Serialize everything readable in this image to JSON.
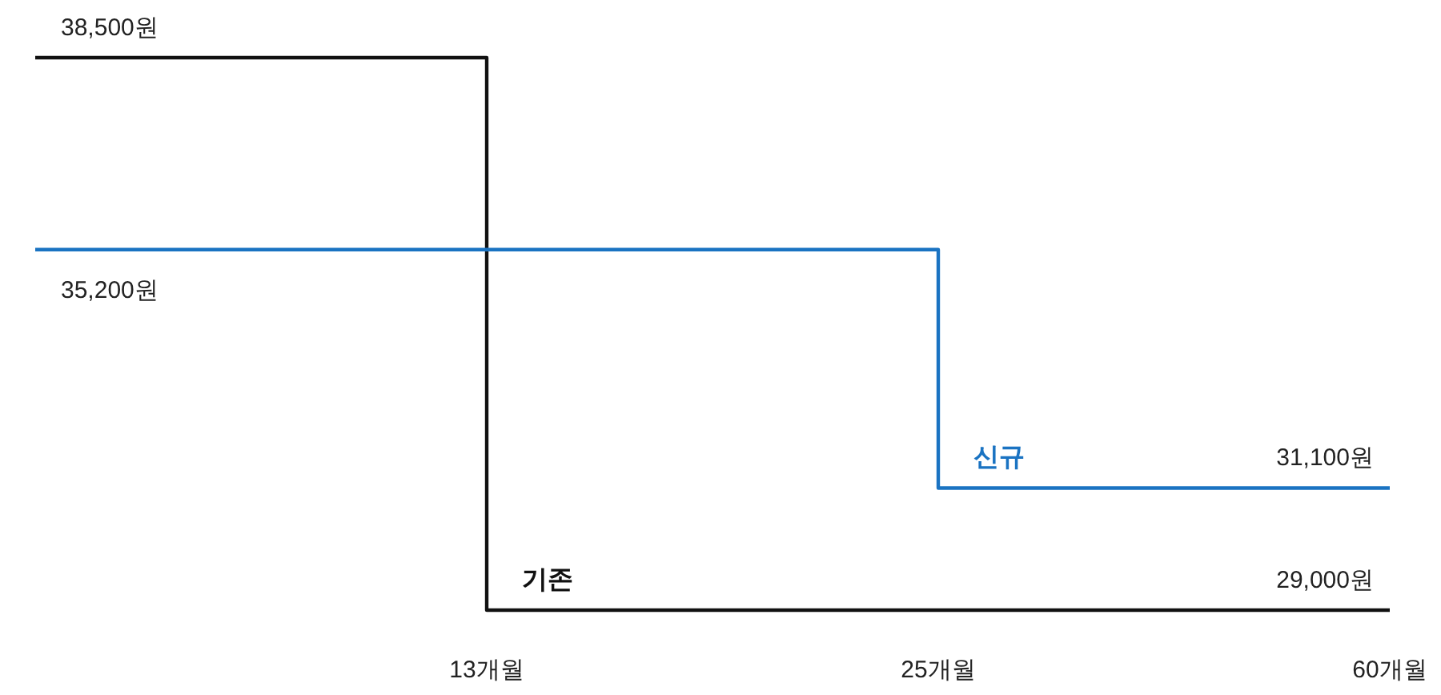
{
  "chart_data": {
    "type": "step",
    "categories": [
      null,
      "13개월",
      "25개월",
      "60개월"
    ],
    "series": [
      {
        "name": "기존",
        "color": "#111111",
        "values": [
          38500,
          29000,
          29000,
          29000
        ],
        "value_labels": [
          "38,500원",
          null,
          null,
          "29,000원"
        ]
      },
      {
        "name": "신규",
        "color": "#1a73c2",
        "values": [
          35200,
          35200,
          31100,
          31100
        ],
        "value_labels": [
          "35,200원",
          null,
          null,
          "31,100원"
        ]
      }
    ],
    "legend": false,
    "grid": false
  }
}
